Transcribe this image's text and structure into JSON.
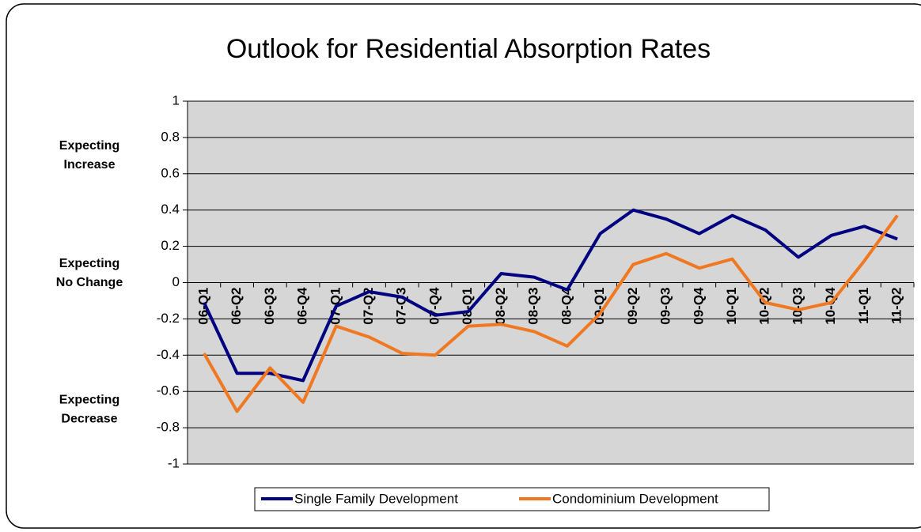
{
  "chart_data": {
    "type": "line",
    "title": "Outlook for Residential Absorption Rates",
    "annotations": [
      [
        "Expecting",
        "Increase"
      ],
      [
        "Expecting",
        "No Change"
      ],
      [
        "Expecting",
        "Decrease"
      ]
    ],
    "categories": [
      "06-Q1",
      "06-Q2",
      "06-Q3",
      "06-Q4",
      "07-Q1",
      "07-Q2",
      "07-Q3",
      "07-Q4",
      "08-Q1",
      "08-Q2",
      "08-Q3",
      "08-Q4",
      "09-Q1",
      "09-Q2",
      "09-Q3",
      "09-Q4",
      "10-Q1",
      "10-Q2",
      "10-Q3",
      "10-Q4",
      "11-Q1",
      "11-Q2"
    ],
    "series": [
      {
        "name": "Single Family Development",
        "color": "#000080",
        "values": [
          -0.11,
          -0.5,
          -0.5,
          -0.54,
          -0.13,
          -0.05,
          -0.08,
          -0.18,
          -0.16,
          0.05,
          0.03,
          -0.04,
          0.27,
          0.4,
          0.35,
          0.27,
          0.37,
          0.29,
          0.14,
          0.26,
          0.31,
          0.24
        ]
      },
      {
        "name": "Condominium Development",
        "color": "#f07820",
        "values": [
          -0.39,
          -0.71,
          -0.47,
          -0.66,
          -0.24,
          -0.3,
          -0.39,
          -0.4,
          -0.24,
          -0.23,
          -0.27,
          -0.35,
          -0.17,
          0.1,
          0.16,
          0.08,
          0.13,
          -0.11,
          -0.15,
          -0.11,
          0.12,
          0.37
        ]
      }
    ],
    "ylim": [
      -1,
      1
    ],
    "yticks": [
      1,
      0.8,
      0.6,
      0.4,
      0.2,
      0,
      -0.2,
      -0.4,
      -0.6,
      -0.8,
      -1
    ],
    "grid": true,
    "legend": "bottom"
  }
}
